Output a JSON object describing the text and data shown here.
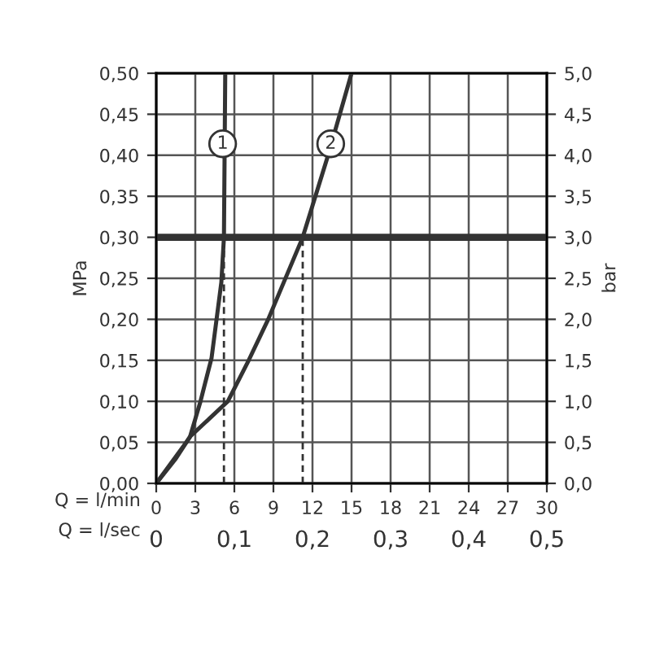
{
  "chart_data": {
    "type": "line",
    "xlabel": "Q = l/min",
    "ylabel": "MPa",
    "y2label": "bar",
    "x2label": "Q = l/sec",
    "xlim": [
      0,
      30
    ],
    "xticks": [
      0,
      3,
      6,
      9,
      12,
      15,
      18,
      21,
      24,
      27,
      30
    ],
    "x2lim": [
      0,
      0.5
    ],
    "x2ticks": [
      {
        "value": 0,
        "label": "0"
      },
      {
        "value": 0.1,
        "label": "0,1"
      },
      {
        "value": 0.2,
        "label": "0,2"
      },
      {
        "value": 0.3,
        "label": "0,3"
      },
      {
        "value": 0.4,
        "label": "0,4"
      },
      {
        "value": 0.5,
        "label": "0,5"
      }
    ],
    "ylim": [
      0,
      0.5
    ],
    "yticks": [
      {
        "value": 0,
        "label": "0,00"
      },
      {
        "value": 0.05,
        "label": "0,05"
      },
      {
        "value": 0.1,
        "label": "0,10"
      },
      {
        "value": 0.15,
        "label": "0,15"
      },
      {
        "value": 0.2,
        "label": "0,20"
      },
      {
        "value": 0.25,
        "label": "0,25"
      },
      {
        "value": 0.3,
        "label": "0,30"
      },
      {
        "value": 0.35,
        "label": "0,35"
      },
      {
        "value": 0.4,
        "label": "0,40"
      },
      {
        "value": 0.45,
        "label": "0,45"
      },
      {
        "value": 0.5,
        "label": "0,50"
      }
    ],
    "y2lim": [
      0,
      5
    ],
    "y2ticks": [
      {
        "value": 0,
        "label": "0,0"
      },
      {
        "value": 0.5,
        "label": "0,5"
      },
      {
        "value": 1,
        "label": "1,0"
      },
      {
        "value": 1.5,
        "label": "1,5"
      },
      {
        "value": 2,
        "label": "2,0"
      },
      {
        "value": 2.5,
        "label": "2,5"
      },
      {
        "value": 3,
        "label": "3,0"
      },
      {
        "value": 3.5,
        "label": "3,5"
      },
      {
        "value": 4,
        "label": "4,0"
      },
      {
        "value": 4.5,
        "label": "4,5"
      },
      {
        "value": 5,
        "label": "5,0"
      }
    ],
    "grid": true,
    "marker": "none",
    "series": [
      {
        "color": "#333333",
        "x": [
          0,
          1.5,
          2.6,
          3.4,
          4.25,
          5.0,
          5.2,
          5.25,
          5.3
        ],
        "values": [
          0,
          0.03,
          0.057,
          0.1,
          0.153,
          0.245,
          0.3,
          0.4,
          0.5
        ]
      },
      {
        "color": "#333333",
        "x": [
          0,
          2.3,
          2.6,
          5.5,
          7.1,
          8.6,
          11.25,
          13.2,
          15.0
        ],
        "values": [
          0,
          0.05,
          0.057,
          0.1,
          0.15,
          0.2,
          0.3,
          0.4,
          0.5
        ]
      },
      {
        "color": "#333333",
        "line_style": "dashed",
        "x": [
          5.2,
          5.2
        ],
        "values": [
          0,
          0.3
        ]
      },
      {
        "color": "#333333",
        "line_style": "dashed",
        "x": [
          11.25,
          11.25
        ],
        "values": [
          0,
          0.3
        ]
      }
    ],
    "ref_lines": [
      {
        "axis": "y",
        "value": 0.3,
        "color": "#333333"
      }
    ],
    "annotations": [
      {
        "text": "1",
        "x": 5.1,
        "y": 0.414
      },
      {
        "text": "2",
        "x": 13.4,
        "y": 0.414
      }
    ]
  }
}
